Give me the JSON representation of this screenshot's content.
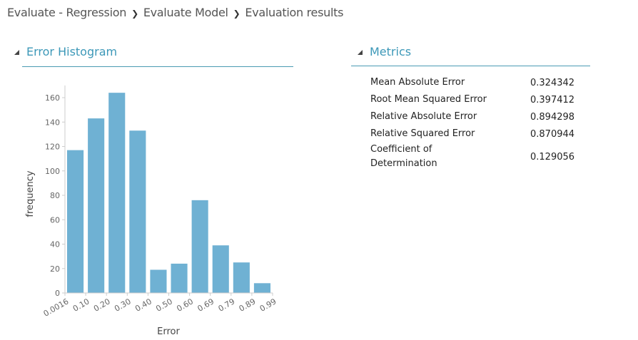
{
  "breadcrumb": [
    "Evaluate - Regression",
    "Evaluate Model",
    "Evaluation results"
  ],
  "sections": {
    "histogram_title": "Error Histogram",
    "metrics_title": "Metrics"
  },
  "metrics": [
    {
      "label": "Mean Absolute Error",
      "value": "0.324342"
    },
    {
      "label": "Root Mean Squared Error",
      "value": "0.397412"
    },
    {
      "label": "Relative Absolute Error",
      "value": "0.894298"
    },
    {
      "label": "Relative Squared Error",
      "value": "0.870944"
    },
    {
      "label": "Coefficient of Determination",
      "value": "0.129056"
    }
  ],
  "colors": {
    "accent": "#3c98b8",
    "bar": "#6fb1d3"
  },
  "chart_data": {
    "type": "bar",
    "xlabel": "Error",
    "ylabel": "frequency",
    "x_ticks": [
      "0.0016",
      "0.10",
      "0.20",
      "0.30",
      "0.40",
      "0.50",
      "0.60",
      "0.69",
      "0.79",
      "0.89",
      "0.99"
    ],
    "values": [
      117,
      143,
      164,
      133,
      19,
      24,
      76,
      39,
      25,
      8
    ],
    "y_ticks": [
      0,
      20,
      40,
      60,
      80,
      100,
      120,
      140,
      160
    ],
    "ylim": [
      0,
      170
    ],
    "grid": false
  }
}
